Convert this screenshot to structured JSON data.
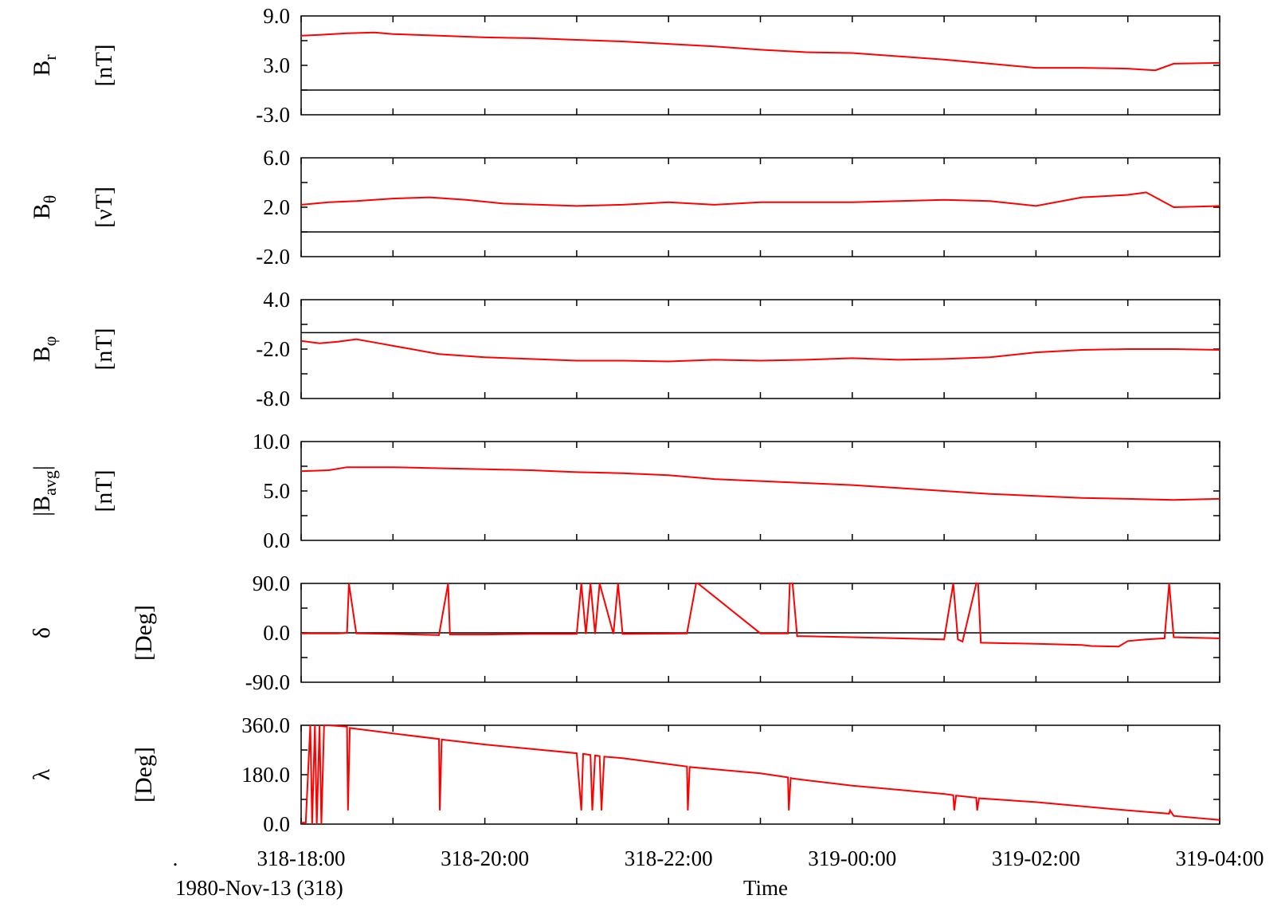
{
  "colors": {
    "series": "#ff0000",
    "axis": "#000000",
    "background": "#ffffff"
  },
  "chart_data": [
    {
      "type": "line",
      "ylabel_main": "B",
      "ylabel_sub": "r",
      "ylabel_unit": "[nT]",
      "yticks": [
        "9.0",
        "3.0",
        "-3.0"
      ],
      "ylim": [
        -3,
        9
      ],
      "zero_line": 0,
      "series": [
        {
          "x": [
            0,
            0.2,
            0.5,
            0.8,
            1.0,
            1.5,
            2.0,
            2.5,
            3.0,
            3.5,
            4.0,
            4.5,
            5.0,
            5.5,
            6.0,
            6.5,
            7.0,
            7.5,
            8.0,
            8.5,
            9.0,
            9.3,
            9.5,
            10.0
          ],
          "y": [
            6.6,
            6.7,
            6.9,
            7.0,
            6.8,
            6.6,
            6.4,
            6.3,
            6.1,
            5.9,
            5.6,
            5.3,
            4.9,
            4.6,
            4.5,
            4.1,
            3.7,
            3.2,
            2.7,
            2.7,
            2.6,
            2.4,
            3.2,
            3.3
          ]
        }
      ]
    },
    {
      "type": "line",
      "ylabel_main": "B",
      "ylabel_sub": "θ",
      "ylabel_unit": "[νT]",
      "yticks": [
        "6.0",
        "2.0",
        "-2.0"
      ],
      "ylim": [
        -2,
        6
      ],
      "zero_line": 0,
      "series": [
        {
          "x": [
            0,
            0.3,
            0.6,
            1.0,
            1.4,
            1.8,
            2.2,
            2.6,
            3.0,
            3.5,
            4.0,
            4.5,
            5.0,
            5.5,
            6.0,
            6.5,
            7.0,
            7.5,
            8.0,
            8.5,
            9.0,
            9.2,
            9.5,
            10.0
          ],
          "y": [
            2.2,
            2.4,
            2.5,
            2.7,
            2.8,
            2.6,
            2.3,
            2.2,
            2.1,
            2.2,
            2.4,
            2.2,
            2.4,
            2.4,
            2.4,
            2.5,
            2.6,
            2.5,
            2.1,
            2.8,
            3.0,
            3.2,
            2.0,
            2.1
          ]
        }
      ]
    },
    {
      "type": "line",
      "ylabel_main": "B",
      "ylabel_sub": "φ",
      "ylabel_unit": "[nT]",
      "yticks": [
        "4.0",
        "-2.0",
        "-8.0"
      ],
      "ylim": [
        -8,
        4
      ],
      "zero_line": 0,
      "series": [
        {
          "x": [
            0,
            0.2,
            0.4,
            0.6,
            0.8,
            1.0,
            1.5,
            2.0,
            2.5,
            3.0,
            3.5,
            4.0,
            4.5,
            5.0,
            5.5,
            6.0,
            6.5,
            7.0,
            7.5,
            8.0,
            8.5,
            9.0,
            9.5,
            10.0
          ],
          "y": [
            -1.0,
            -1.3,
            -1.1,
            -0.8,
            -1.2,
            -1.6,
            -2.6,
            -3.0,
            -3.2,
            -3.4,
            -3.4,
            -3.5,
            -3.3,
            -3.4,
            -3.3,
            -3.1,
            -3.3,
            -3.2,
            -3.0,
            -2.4,
            -2.1,
            -2.0,
            -2.0,
            -2.1
          ]
        }
      ]
    },
    {
      "type": "line",
      "ylabel_main": "|B",
      "ylabel_sub": "avg",
      "ylabel_close": "|",
      "ylabel_unit": "[nT]",
      "yticks": [
        "10.0",
        "5.0",
        "0.0"
      ],
      "ylim": [
        0,
        10
      ],
      "series": [
        {
          "x": [
            0,
            0.3,
            0.5,
            1.0,
            1.5,
            2.0,
            2.5,
            3.0,
            3.5,
            4.0,
            4.5,
            5.0,
            5.5,
            6.0,
            6.5,
            7.0,
            7.5,
            8.0,
            8.5,
            9.0,
            9.5,
            10.0
          ],
          "y": [
            7.0,
            7.1,
            7.4,
            7.4,
            7.3,
            7.2,
            7.1,
            6.9,
            6.8,
            6.6,
            6.2,
            6.0,
            5.8,
            5.6,
            5.3,
            5.0,
            4.7,
            4.5,
            4.3,
            4.2,
            4.1,
            4.2
          ]
        }
      ]
    },
    {
      "type": "line",
      "ylabel_main": "δ",
      "ylabel_unit": "[Deg]",
      "yticks": [
        "90.0",
        "0.0",
        "-90.0"
      ],
      "ylim": [
        -90,
        90
      ],
      "zero_line": 0,
      "series": [
        {
          "x": [
            0,
            0.4,
            0.5,
            0.52,
            0.6,
            1.0,
            1.5,
            1.6,
            1.62,
            1.9,
            2.0,
            2.5,
            3.0,
            3.05,
            3.1,
            3.15,
            3.2,
            3.25,
            3.4,
            3.45,
            3.5,
            4.2,
            4.3,
            4.32,
            5.0,
            5.3,
            5.32,
            5.35,
            5.4,
            6.0,
            6.5,
            7.0,
            7.1,
            7.15,
            7.2,
            7.35,
            7.37,
            7.4,
            8.0,
            8.5,
            8.6,
            8.9,
            9.0,
            9.2,
            9.4,
            9.45,
            9.5,
            10.0
          ],
          "y": [
            -1,
            -1,
            0,
            90,
            -1,
            -2,
            -4,
            90,
            -3,
            -3,
            -3,
            -2,
            -2,
            90,
            -2,
            90,
            -2,
            90,
            -2,
            90,
            -2,
            -1,
            90,
            90,
            -1,
            -1,
            90,
            90,
            -6,
            -8,
            -10,
            -12,
            90,
            -12,
            -16,
            90,
            90,
            -18,
            -20,
            -22,
            -24,
            -25,
            -15,
            -12,
            -10,
            90,
            -8,
            -10
          ]
        }
      ]
    },
    {
      "type": "line",
      "ylabel_main": "λ",
      "ylabel_unit": "[Deg]",
      "yticks": [
        "360.0",
        "180.0",
        "0.0"
      ],
      "ylim": [
        0,
        360
      ],
      "series": [
        {
          "x": [
            0,
            0.05,
            0.1,
            0.12,
            0.15,
            0.17,
            0.2,
            0.22,
            0.25,
            0.3,
            0.5,
            0.51,
            0.53,
            1.0,
            1.5,
            1.51,
            1.53,
            2.0,
            3.0,
            3.05,
            3.07,
            3.15,
            3.17,
            3.2,
            3.25,
            3.27,
            3.3,
            3.5,
            4.2,
            4.21,
            4.23,
            5.0,
            5.3,
            5.31,
            5.33,
            5.35,
            6.0,
            7.0,
            7.1,
            7.11,
            7.13,
            7.35,
            7.36,
            7.38,
            8.0,
            9.0,
            9.45,
            9.46,
            9.5,
            10.0
          ],
          "y": [
            5,
            5,
            360,
            0,
            360,
            0,
            360,
            0,
            360,
            360,
            355,
            50,
            350,
            330,
            310,
            50,
            308,
            290,
            258,
            50,
            256,
            252,
            50,
            250,
            248,
            50,
            246,
            240,
            210,
            50,
            208,
            185,
            170,
            50,
            168,
            166,
            140,
            110,
            105,
            50,
            104,
            96,
            50,
            94,
            80,
            50,
            38,
            50,
            30,
            15
          ]
        }
      ]
    }
  ],
  "x_axis": {
    "xlim": [
      0,
      10
    ],
    "ticks": [
      {
        "x": 0,
        "label": "318-18:00"
      },
      {
        "x": 2,
        "label": "318-20:00"
      },
      {
        "x": 4,
        "label": "318-22:00"
      },
      {
        "x": 6,
        "label": "319-00:00"
      },
      {
        "x": 8,
        "label": "319-02:00"
      },
      {
        "x": 10,
        "label": "319-04:00"
      }
    ],
    "label": "Time"
  },
  "footer": {
    "dot": ".",
    "date": "1980-Nov-13 (318)"
  }
}
